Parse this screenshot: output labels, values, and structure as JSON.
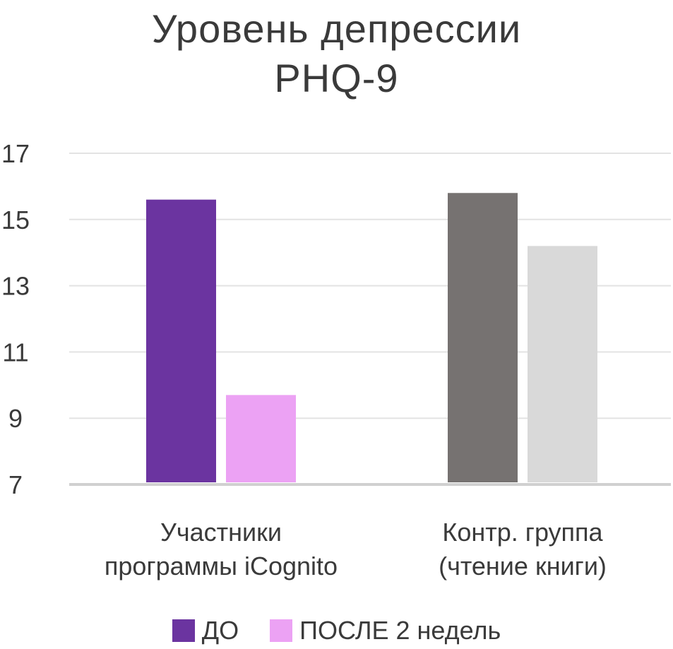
{
  "chart_data": {
    "type": "bar",
    "title": [
      "Уровень депрессии",
      "PHQ-9"
    ],
    "categories": [
      [
        "Участники",
        "программы iCognito"
      ],
      [
        "Контр. группа",
        "(чтение книги)"
      ]
    ],
    "series": [
      {
        "name": "ДО",
        "values": [
          15.6,
          15.8
        ]
      },
      {
        "name": "ПОСЛЕ 2 недель",
        "values": [
          9.7,
          14.2
        ]
      }
    ],
    "bar_colors": [
      [
        "#6b34a0",
        "#eca2f4"
      ],
      [
        "#767271",
        "#d9d9d9"
      ]
    ],
    "legend_colors": [
      "#6b34a0",
      "#eca2f4"
    ],
    "ylim": [
      7,
      17
    ],
    "yticks": [
      17,
      15,
      13,
      11,
      9,
      7
    ],
    "grid": true,
    "legend_position": "bottom"
  }
}
